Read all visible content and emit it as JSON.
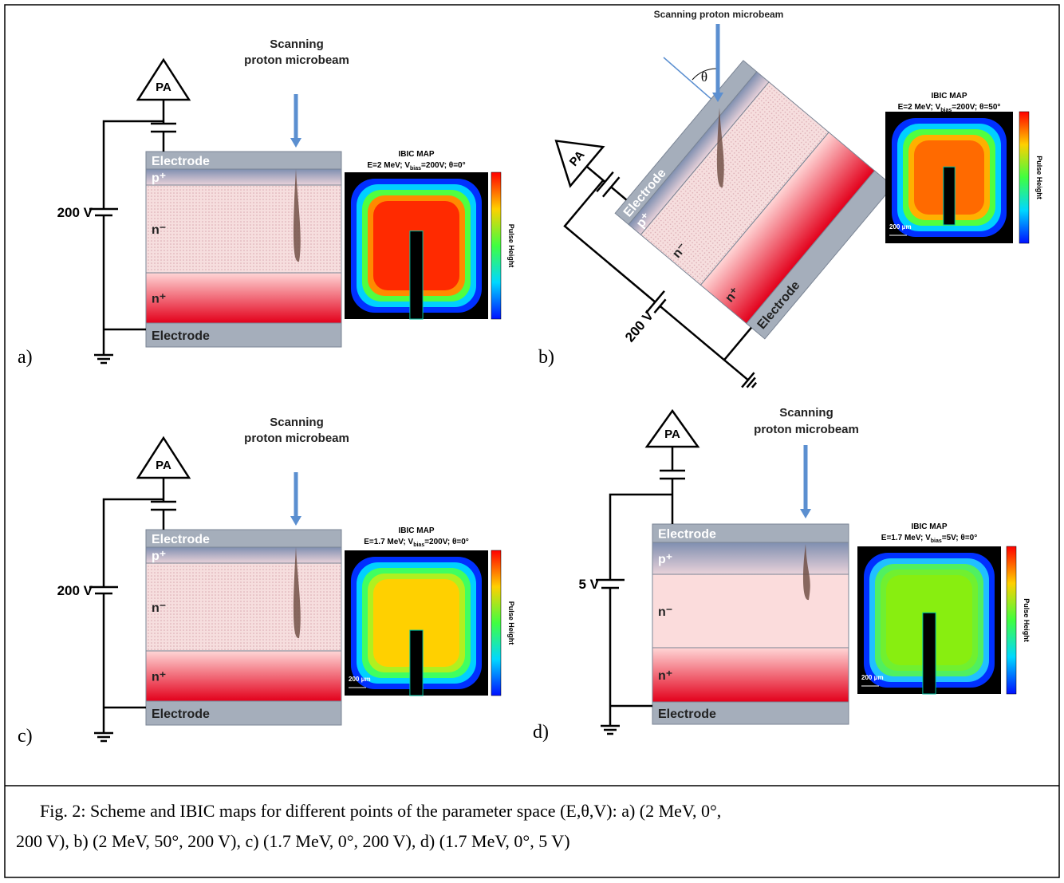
{
  "panels": [
    {
      "label": "a)",
      "beam": [
        "Scanning",
        "proton microbeam"
      ],
      "amplifier": "PA",
      "voltage": "200 V",
      "layers": {
        "top_electrode": "Electrode",
        "p_plus": "p⁺",
        "n_minus": "n⁻",
        "n_plus": "n⁺",
        "bottom_electrode": "Electrode"
      },
      "map": {
        "title": "IBIC MAP",
        "params": [
          "E=2 MeV; V",
          "bias",
          "=200V; θ=0°"
        ],
        "colorbar": "Pulse Height"
      }
    },
    {
      "label": "b)",
      "beam": [
        "Scanning proton microbeam"
      ],
      "theta": "θ",
      "amplifier": "PA",
      "voltage": "200 V",
      "layers": {
        "top_electrode": "Electrode",
        "p_plus": "p⁺",
        "n_minus": "n⁻",
        "n_plus": "n⁺",
        "bottom_electrode": "Electrode"
      },
      "map": {
        "title": "IBIC MAP",
        "params": [
          "E=2 MeV; V",
          "bias",
          "=200V; θ=50°"
        ],
        "colorbar": "Pulse Height",
        "scale": "200 μm"
      }
    },
    {
      "label": "c)",
      "beam": [
        "Scanning",
        "proton microbeam"
      ],
      "amplifier": "PA",
      "voltage": "200 V",
      "layers": {
        "top_electrode": "Electrode",
        "p_plus": "p⁺",
        "n_minus": "n⁻",
        "n_plus": "n⁺",
        "bottom_electrode": "Electrode"
      },
      "map": {
        "title": "IBIC MAP",
        "params": [
          "E=1.7 MeV; V",
          "bias",
          "=200V; θ=0°"
        ],
        "colorbar": "Pulse Height",
        "scale": "200 μm"
      }
    },
    {
      "label": "d)",
      "beam": [
        "Scanning",
        "proton microbeam"
      ],
      "amplifier": "PA",
      "voltage": "5 V",
      "layers": {
        "top_electrode": "Electrode",
        "p_plus": "p⁺",
        "n_minus": "n⁻",
        "n_plus": "n⁺",
        "bottom_electrode": "Electrode"
      },
      "map": {
        "title": "IBIC MAP",
        "params": [
          "E=1.7 MeV; V",
          "bias",
          "=5V; θ=0°"
        ],
        "colorbar": "Pulse Height",
        "scale": "200 μm"
      }
    }
  ],
  "caption": [
    "Fig. 2: Scheme and IBIC maps for different points of the parameter space (E,θ,V): a) (2 MeV, 0°,",
    "200 V), b) (2 MeV, 50°, 200 V), c) (1.7 MeV, 0°, 200 V), d) (1.7 MeV, 0°, 5 V)"
  ]
}
